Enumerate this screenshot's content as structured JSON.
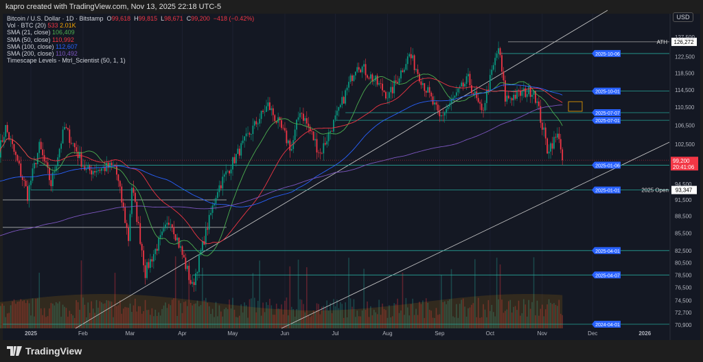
{
  "header": {
    "credit": "kapro created with TradingView.com, Nov 13, 2025 22:18 UTC-5"
  },
  "legend": {
    "symbol": "Bitcoin / U.S. Dollar · 1D · Bitstamp",
    "ohlc": {
      "o": "99,618",
      "h": "99,815",
      "l": "98,671",
      "c": "99,200",
      "change": "−418 (−0.42%)"
    },
    "vol": {
      "label": "Vol · BTC (20)",
      "v1": "533",
      "v2": "2.01K"
    },
    "sma21": {
      "label": "SMA (21, close)",
      "value": "106,409"
    },
    "sma50": {
      "label": "SMA (50, close)",
      "value": "110,992"
    },
    "sma100": {
      "label": "SMA (100, close)",
      "value": "112,607"
    },
    "sma200": {
      "label": "SMA (200, close)",
      "value": "110,492"
    },
    "indicator": "Timescape Levels - Mtrl_Scientist (50, 1, 1)"
  },
  "currency": "USD",
  "footer": {
    "brand": "TradingView"
  },
  "chart_data": {
    "type": "candlestick",
    "y_scale": "log",
    "ylim": [
      70000,
      131000
    ],
    "y_ticks": [
      "127,500",
      "122,500",
      "118,500",
      "114,500",
      "110,500",
      "106,500",
      "102,500",
      "94,500",
      "91,500",
      "88,500",
      "85,500",
      "82,500",
      "80,500",
      "78,500",
      "76,500",
      "74,500",
      "72,700",
      "70,900"
    ],
    "x_ticks": [
      {
        "label": "2025",
        "date": "2025-01-01"
      },
      {
        "label": "Feb",
        "date": "2025-02-01"
      },
      {
        "label": "Mar",
        "date": "2025-03-01"
      },
      {
        "label": "Apr",
        "date": "2025-04-01"
      },
      {
        "label": "May",
        "date": "2025-05-01"
      },
      {
        "label": "Jun",
        "date": "2025-06-01"
      },
      {
        "label": "Jul",
        "date": "2025-07-01"
      },
      {
        "label": "Aug",
        "date": "2025-08-01"
      },
      {
        "label": "Sep",
        "date": "2025-09-01"
      },
      {
        "label": "Oct",
        "date": "2025-10-01"
      },
      {
        "label": "Nov",
        "date": "2025-11-01"
      },
      {
        "label": "Dec",
        "date": "2025-12-01"
      },
      {
        "label": "2026",
        "date": "2026-01-01"
      }
    ],
    "x_range": [
      "2024-12-13",
      "2026-01-12"
    ],
    "approx_closes": [
      [
        "2024-12-13",
        101000
      ],
      [
        "2024-12-17",
        106000
      ],
      [
        "2024-12-30",
        92500
      ],
      [
        "2025-01-06",
        102000
      ],
      [
        "2025-01-13",
        94500
      ],
      [
        "2025-01-21",
        106000
      ],
      [
        "2025-02-03",
        97000
      ],
      [
        "2025-02-20",
        98000
      ],
      [
        "2025-02-28",
        84500
      ],
      [
        "2025-03-02",
        94000
      ],
      [
        "2025-03-10",
        79000
      ],
      [
        "2025-03-25",
        88000
      ],
      [
        "2025-04-07",
        76500
      ],
      [
        "2025-04-22",
        93500
      ],
      [
        "2025-05-08",
        103000
      ],
      [
        "2025-05-22",
        111000
      ],
      [
        "2025-06-05",
        101500
      ],
      [
        "2025-06-10",
        110000
      ],
      [
        "2025-06-22",
        100500
      ],
      [
        "2025-07-03",
        109500
      ],
      [
        "2025-07-14",
        121000
      ],
      [
        "2025-08-02",
        113000
      ],
      [
        "2025-08-14",
        123000
      ],
      [
        "2025-09-01",
        108000
      ],
      [
        "2025-09-18",
        117000
      ],
      [
        "2025-09-26",
        109000
      ],
      [
        "2025-10-06",
        124800
      ],
      [
        "2025-10-10",
        112500
      ],
      [
        "2025-10-27",
        114500
      ],
      [
        "2025-11-04",
        101500
      ],
      [
        "2025-11-11",
        104500
      ],
      [
        "2025-11-13",
        99200
      ]
    ],
    "last_price": {
      "value": "99,200",
      "countdown": "20:41:06",
      "color": "#f23645"
    },
    "ath": {
      "label": "ATH",
      "value": "126,272",
      "price": 126272
    },
    "open_2025": {
      "label": "2025 Open",
      "value": "93,347",
      "price": 93347
    },
    "levels": [
      {
        "date": "2025-10-06",
        "price": 123300
      },
      {
        "date": "2025-10-01",
        "price": 114200
      },
      {
        "date": "2025-07-07",
        "price": 109300
      },
      {
        "date": "2025-07-01",
        "price": 107600
      },
      {
        "date": "2025-01-06",
        "price": 98200
      },
      {
        "date": "2025-01-01",
        "price": 93347
      },
      {
        "date": "2025-04-01",
        "price": 82500
      },
      {
        "date": "2025-04-07",
        "price": 78500
      },
      {
        "date": "2024-04-01",
        "price": 71000
      }
    ],
    "series_colors": {
      "up": "#089981",
      "down": "#f23645",
      "sma21": "#4caf50",
      "sma50": "#f23645",
      "sma100": "#2962ff",
      "sma200": "#7e57c2",
      "level": "#26a69a",
      "level_tag": "#2962ff"
    }
  }
}
